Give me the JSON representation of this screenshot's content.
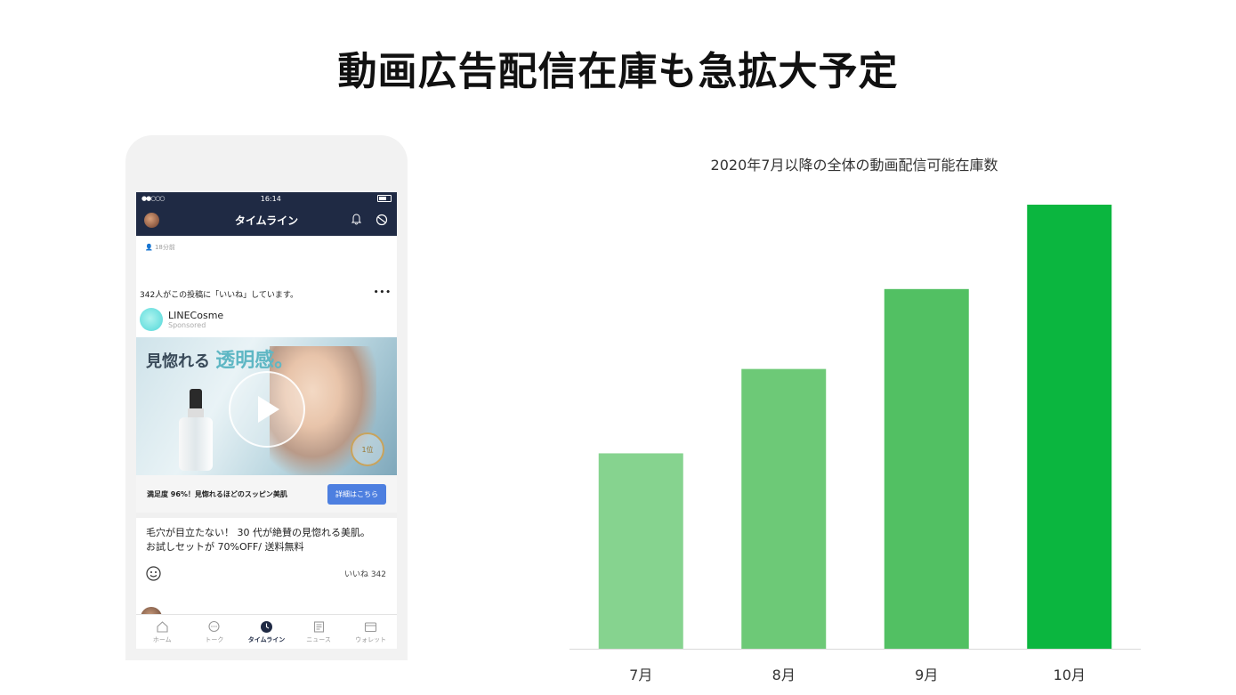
{
  "main_title": "動画広告配信在庫も急拡大予定",
  "phone": {
    "status": {
      "time": "16:14",
      "signal": "●●○○○"
    },
    "nav": {
      "title": "タイムライン"
    },
    "post": {
      "time_ago": "18分前",
      "likes_text": "342人がこの投稿に「いいね」しています。",
      "more": "•••",
      "account_name": "LINECosme",
      "account_sub": "Sponsored",
      "ad_text_prefix": "見惚れる",
      "ad_text_highlight": "透明感。",
      "badge_text": "1位",
      "cta_text": "満足度 96%！見惚れるほどのスッピン美肌",
      "cta_button": "詳細はこちら",
      "body_line1": "毛穴が目立たない！ 30 代が絶賛の見惚れる美肌。",
      "body_line2": "お試しセットが 70%OFF/ 送料無料",
      "like_count": "いいね 342"
    },
    "tabs": [
      {
        "label": "ホーム",
        "icon": "home-icon",
        "active": false
      },
      {
        "label": "トーク",
        "icon": "chat-icon",
        "active": false
      },
      {
        "label": "タイムライン",
        "icon": "clock-icon",
        "active": true
      },
      {
        "label": "ニュース",
        "icon": "news-icon",
        "active": false
      },
      {
        "label": "ウォレット",
        "icon": "wallet-icon",
        "active": false
      }
    ]
  },
  "chart_data": {
    "type": "bar",
    "title": "2020年7月以降の全体の動画配信可能在庫数",
    "categories": [
      "7月",
      "8月",
      "9月",
      "10月"
    ],
    "values": [
      44,
      63,
      81,
      100
    ],
    "ylim": [
      0,
      100
    ],
    "grid": false,
    "colors": [
      "#86d38f",
      "#6dc977",
      "#52c063",
      "#0bb63f"
    ]
  }
}
